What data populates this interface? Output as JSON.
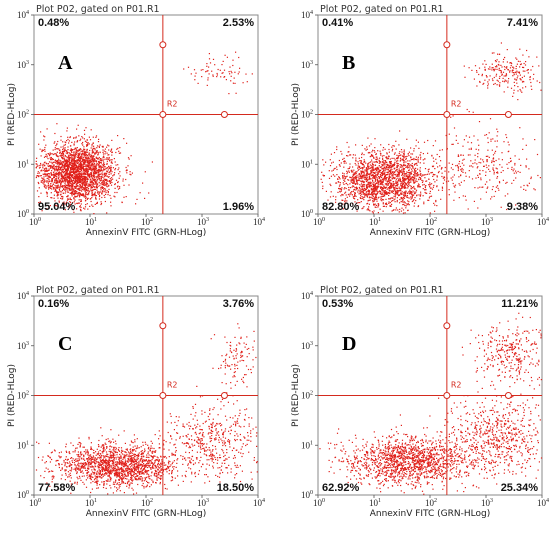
{
  "colors": {
    "dots": "#e0201a",
    "gate": "#d42a1e",
    "frame": "#888888"
  },
  "chart_data": [
    {
      "type": "scatter",
      "panel_letter": "A",
      "title": "Plot P02, gated on P01.R1",
      "xlabel": "AnnexinV FITC (GRN-HLog)",
      "ylabel": "PI (RED-HLog)",
      "xscale": "log",
      "yscale": "log",
      "xlim": [
        1,
        10000
      ],
      "ylim": [
        1,
        10000
      ],
      "gate_label": "R2",
      "gate_x": 200,
      "gate_y": 100,
      "quadrants": {
        "upper_left": "0.48%",
        "upper_right": "2.53%",
        "lower_left": "95.04%",
        "lower_right": "1.96%"
      },
      "clusters": [
        {
          "x": 6,
          "y": 7,
          "sx": 0.35,
          "sy": 0.3,
          "n": 2400
        },
        {
          "x": 2000,
          "y": 700,
          "sx": 0.3,
          "sy": 0.18,
          "n": 70
        }
      ]
    },
    {
      "type": "scatter",
      "panel_letter": "B",
      "title": "Plot P02, gated on P01.R1",
      "xlabel": "AnnexinV FITC (GRN-HLog)",
      "ylabel": "PI (RED-HLog)",
      "xscale": "log",
      "yscale": "log",
      "xlim": [
        1,
        10000
      ],
      "ylim": [
        1,
        10000
      ],
      "gate_label": "R2",
      "gate_x": 200,
      "gate_y": 100,
      "quadrants": {
        "upper_left": "0.41%",
        "upper_right": "7.41%",
        "lower_left": "82.80%",
        "lower_right": "9.38%"
      },
      "clusters": [
        {
          "x": 15,
          "y": 5,
          "sx": 0.45,
          "sy": 0.3,
          "n": 1900
        },
        {
          "x": 2500,
          "y": 700,
          "sx": 0.3,
          "sy": 0.2,
          "n": 220
        },
        {
          "x": 900,
          "y": 10,
          "sx": 0.5,
          "sy": 0.4,
          "n": 280
        }
      ]
    },
    {
      "type": "scatter",
      "panel_letter": "C",
      "title": "Plot P02, gated on P01.R1",
      "xlabel": "AnnexinV FITC (GRN-HLog)",
      "ylabel": "PI (RED-HLog)",
      "xscale": "log",
      "yscale": "log",
      "xlim": [
        1,
        10000
      ],
      "ylim": [
        1,
        10000
      ],
      "gate_label": "R2",
      "gate_x": 200,
      "gate_y": 100,
      "quadrants": {
        "upper_left": "0.16%",
        "upper_right": "3.76%",
        "lower_left": "77.58%",
        "lower_right": "18.50%"
      },
      "clusters": [
        {
          "x": 30,
          "y": 4,
          "sx": 0.55,
          "sy": 0.22,
          "n": 1600
        },
        {
          "x": 1500,
          "y": 12,
          "sx": 0.4,
          "sy": 0.4,
          "n": 450
        },
        {
          "x": 4000,
          "y": 600,
          "sx": 0.25,
          "sy": 0.3,
          "n": 110
        }
      ]
    },
    {
      "type": "scatter",
      "panel_letter": "D",
      "title": "Plot P02, gated on P01.R1",
      "xlabel": "AnnexinV FITC (GRN-HLog)",
      "ylabel": "PI (RED-HLog)",
      "xscale": "log",
      "yscale": "log",
      "xlim": [
        1,
        10000
      ],
      "ylim": [
        1,
        10000
      ],
      "gate_label": "R2",
      "gate_x": 200,
      "gate_y": 100,
      "quadrants": {
        "upper_left": "0.53%",
        "upper_right": "11.21%",
        "lower_left": "62.92%",
        "lower_right": "25.34%"
      },
      "clusters": [
        {
          "x": 40,
          "y": 5,
          "sx": 0.6,
          "sy": 0.25,
          "n": 1400
        },
        {
          "x": 1800,
          "y": 15,
          "sx": 0.45,
          "sy": 0.4,
          "n": 600
        },
        {
          "x": 3000,
          "y": 700,
          "sx": 0.35,
          "sy": 0.3,
          "n": 320
        }
      ]
    }
  ]
}
